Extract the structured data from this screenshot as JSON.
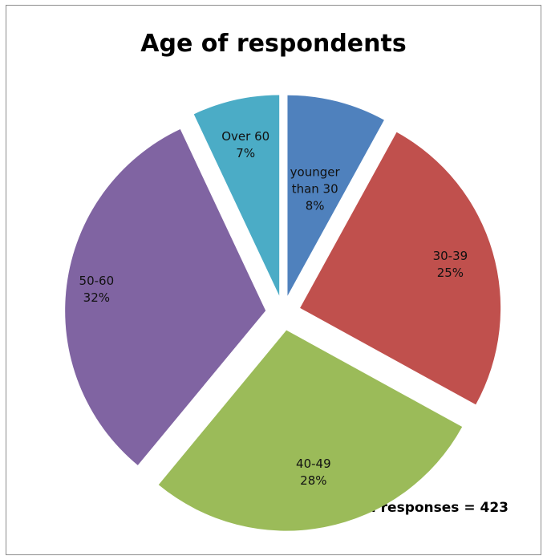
{
  "chart_data": {
    "type": "pie",
    "title": "Age of respondents",
    "categories": [
      "younger than 30",
      "30-39",
      "40-49",
      "50-60",
      "Over 60"
    ],
    "values": [
      8,
      25,
      28,
      32,
      7
    ],
    "value_unit": "%",
    "colors": [
      "#4f81bd",
      "#c0504d",
      "#9bbb59",
      "#8064a2",
      "#4bacc6"
    ],
    "data_labels": [
      [
        "younger",
        "than 30",
        "8%"
      ],
      [
        "30-39",
        "25%"
      ],
      [
        "40-49",
        "28%"
      ],
      [
        "50-60",
        "32%"
      ],
      [
        "Over 60",
        "7%"
      ]
    ],
    "exploded": true,
    "legend": "none",
    "annotation": "Total responses = 423"
  }
}
